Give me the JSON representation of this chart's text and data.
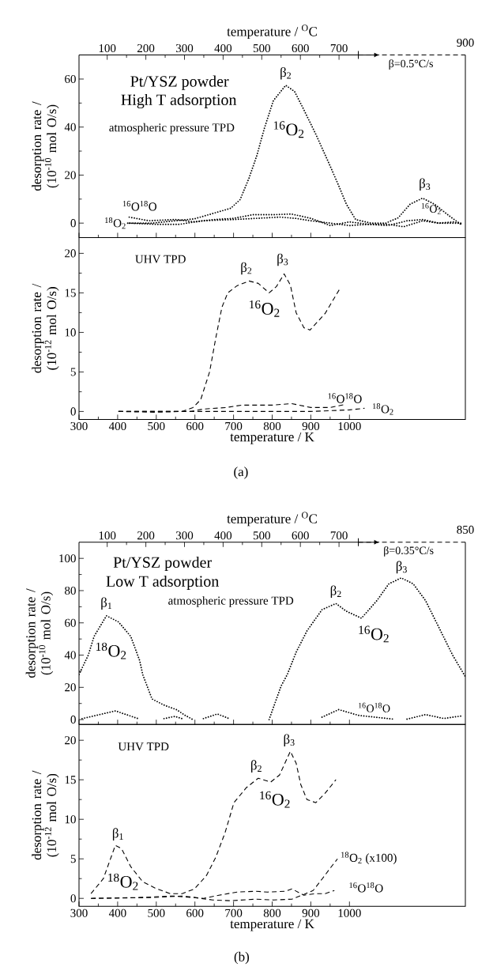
{
  "chart_data": [
    {
      "type": "line",
      "line_style": "dotted",
      "xlim": [
        300,
        1300
      ],
      "ylim": [
        -6,
        70
      ],
      "tick_labels": "y",
      "xticks": [
        {
          "value": 300,
          "label": null
        },
        {
          "value": 400,
          "label": null
        },
        {
          "value": 500,
          "label": null
        },
        {
          "value": 600,
          "label": null
        },
        {
          "value": 700,
          "label": null
        },
        {
          "value": 800,
          "label": null
        },
        {
          "value": 900,
          "label": null
        },
        {
          "value": 1000,
          "label": null
        }
      ],
      "yticks": [
        0,
        20,
        40,
        60
      ],
      "x2lim": [
        27,
        1027
      ],
      "x2ticks": [
        100,
        200,
        300,
        400,
        500,
        600,
        700
      ],
      "x2label": "temperature / $^{O}$C",
      "ylabel": "desorption rate / (10$^{-10}$ mol O/s)",
      "annotations": [
        "Pt/YSZ powder",
        "High T adsorption",
        "atmospheric pressure TPD",
        "β=0.5°C/s",
        "β$_{2}$",
        "$^{16}$O$_{2}$",
        "β$_{3}$",
        "$^{16}$O$_{2}$",
        "$^{16}$O$^{18}$O",
        "$^{18}$O$_{2}$",
        "900"
      ],
      "series": [
        {
          "color": "#000000",
          "x": [
            426,
            489,
            599,
            646,
            693,
            717,
            740,
            760,
            780,
            803,
            835,
            858,
            882,
            913,
            945,
            969,
            992,
            1016,
            1055,
            1094,
            1126,
            1157,
            1189,
            1220,
            1260,
            1291
          ],
          "values": [
            0,
            0,
            1.8,
            4,
            6.2,
            9.8,
            18.7,
            28,
            39.6,
            51,
            57.4,
            54.8,
            47.2,
            37,
            25.6,
            16.8,
            7.9,
            1.5,
            0,
            0,
            2.2,
            7.9,
            10.4,
            7.9,
            2.8,
            -0.8
          ]
        },
        {
          "color": "#000000",
          "x": [
            430,
            480,
            550,
            600,
            650,
            700,
            750,
            800,
            850,
            900,
            950,
            1000,
            1050,
            1100,
            1150,
            1190,
            1230,
            1270,
            1295
          ],
          "values": [
            2.5,
            1,
            1.5,
            0.5,
            1.5,
            2,
            3.5,
            3.5,
            3.8,
            2,
            -1,
            0.5,
            -0.5,
            -1,
            1,
            1.5,
            0,
            0.5,
            -0.5
          ]
        },
        {
          "color": "#000000",
          "x": [
            430,
            500,
            560,
            620,
            700,
            760,
            820,
            860,
            900,
            950,
            1000,
            1050,
            1100,
            1140,
            1190,
            1230,
            1290
          ],
          "values": [
            0,
            -0.5,
            -0.5,
            1,
            1.5,
            2,
            2.5,
            2,
            1,
            0,
            -1,
            -0.5,
            -0.5,
            -1.5,
            1,
            0,
            0
          ]
        }
      ]
    },
    {
      "type": "line",
      "line_style": "dashed",
      "xlim": [
        300,
        1300
      ],
      "ylim": [
        -1,
        22
      ],
      "xticks": [
        300,
        400,
        500,
        600,
        700,
        800,
        900,
        1000
      ],
      "yticks": [
        0,
        5,
        10,
        15,
        20
      ],
      "xlabel": "temperature / K",
      "ylabel": "desorption rate / (10$^{-12}$ mol O/s)",
      "annotations": [
        "UHV TPD",
        "(a)",
        "β$_{2}$",
        "β$_{3}$",
        "$^{16}$O$_{2}$",
        "$^{16}$O$^{18}$O",
        "$^{18}$O$_{2}$"
      ],
      "series": [
        {
          "color": "#000000",
          "x": [
            402,
            497,
            567,
            595,
            615,
            638,
            654,
            670,
            685,
            709,
            740,
            764,
            792,
            811,
            831,
            847,
            862,
            882,
            898,
            937,
            976
          ],
          "values": [
            0,
            -0.1,
            0,
            0.5,
            1.5,
            5,
            9.3,
            13.2,
            15,
            15.9,
            16.5,
            16.2,
            15,
            15.8,
            17.4,
            16,
            12.5,
            10.6,
            10.3,
            12.4,
            15.6
          ]
        },
        {
          "color": "#000000",
          "x": [
            402,
            500,
            590,
            620,
            680,
            720,
            800,
            850,
            870,
            900,
            950,
            990
          ],
          "values": [
            0,
            0,
            0,
            0.3,
            0.5,
            0.8,
            0.8,
            1,
            0.8,
            0.5,
            0.5,
            0.9
          ]
        },
        {
          "color": "#000000",
          "x": [
            402,
            600,
            700,
            850,
            900,
            950,
            1000,
            1039
          ],
          "values": [
            0,
            0,
            0,
            0,
            0,
            0.1,
            0.2,
            0.4
          ]
        }
      ]
    },
    {
      "type": "line",
      "line_style": "dotted",
      "xlim": [
        300,
        1300
      ],
      "ylim": [
        -3,
        110
      ],
      "tick_labels": "y",
      "xticks": [
        {
          "value": 300,
          "label": null
        },
        {
          "value": 400,
          "label": null
        },
        {
          "value": 500,
          "label": null
        },
        {
          "value": 600,
          "label": null
        },
        {
          "value": 700,
          "label": null
        },
        {
          "value": 800,
          "label": null
        },
        {
          "value": 900,
          "label": null
        },
        {
          "value": 1000,
          "label": null
        }
      ],
      "yticks": [
        0,
        20,
        40,
        60,
        80,
        100
      ],
      "x2lim": [
        27,
        1027
      ],
      "x2ticks": [
        100,
        200,
        300,
        400,
        500,
        600,
        700
      ],
      "x2label": "temperature / $^{O}$C",
      "ylabel": "desorption rate / (10$^{-10}$ mol O/s)",
      "annotations": [
        "Pt/YSZ powder",
        "Low T adsorption",
        "atmospheric pressure TPD",
        "β=0.35°C/s",
        "β$_{1}$",
        "$^{18}$O$_{2}$",
        "β$_{2}$",
        "β$_{3}$",
        "$^{16}$O$_{2}$",
        "$^{16}$O$^{18}$O",
        "850"
      ],
      "series": [
        {
          "color": "#000000",
          "x": [
            300,
            324,
            339,
            371,
            402,
            434,
            457,
            465,
            489,
            520,
            552,
            575,
            595
          ],
          "values": [
            28,
            40,
            51.6,
            64.4,
            60.6,
            51.6,
            36.6,
            27.9,
            12.8,
            9,
            6.2,
            2.6,
            0
          ]
        },
        {
          "color": "#000000",
          "x": [
            308,
            394,
            453,
            487,
            520,
            548,
            567,
            595,
            622,
            658,
            689,
            800,
            929,
            972,
            1024,
            1114,
            1130,
            1149,
            1197,
            1244,
            1291
          ],
          "values": [
            0.6,
            5.4,
            0.6,
            null,
            0.6,
            2,
            0.6,
            null,
            0.6,
            3.5,
            0.6,
            null,
            1.5,
            6.2,
            2.6,
            0.3,
            null,
            0.3,
            3.1,
            0.7,
            2.3
          ]
        },
        {
          "color": "#000000",
          "x": [
            792,
            803,
            823,
            839,
            862,
            890,
            929,
            965,
            992,
            1031,
            1071,
            1102,
            1134,
            1165,
            1197,
            1236,
            1267,
            1299
          ],
          "values": [
            0,
            7.4,
            20.8,
            27.9,
            41.8,
            55,
            68.2,
            72,
            67.2,
            62.9,
            73.8,
            84.2,
            87.9,
            84.2,
            73.8,
            55,
            40,
            27
          ]
        }
      ]
    },
    {
      "type": "line",
      "line_style": "dashed",
      "xlim": [
        300,
        1300
      ],
      "ylim": [
        -1,
        22
      ],
      "xticks": [
        300,
        400,
        500,
        600,
        700,
        800,
        900,
        1000
      ],
      "yticks": [
        0,
        5,
        10,
        15,
        20
      ],
      "xlabel": "temperature / K",
      "ylabel": "desorption rate / (10$^{-12}$ mol O/s)",
      "annotations": [
        "UHV TPD",
        "(b)",
        "β$_{1}$",
        "$^{18}$O$_{2}$",
        "β$_{2}$",
        "β$_{3}$",
        "$^{16}$O$_{2}$",
        "$^{18}$O$_{2}$ (x100)",
        "$^{16}$O$^{18}$O"
      ],
      "series": [
        {
          "color": "#000000",
          "x": [
            331,
            363,
            394,
            410,
            434,
            465,
            497,
            536,
            567,
            599,
            630,
            654,
            678,
            701,
            733,
            764,
            796,
            819,
            847,
            862,
            874,
            890,
            913,
            937,
            965
          ],
          "values": [
            0.6,
            2.5,
            6.7,
            6.3,
            4,
            2.1,
            1.3,
            0.6,
            0.6,
            1.2,
            2.9,
            5.2,
            8.3,
            12.1,
            14,
            15.2,
            14.7,
            15.6,
            18.6,
            17.1,
            14.4,
            12.5,
            12.1,
            13.3,
            15
          ]
        },
        {
          "color": "#000000",
          "x": [
            331,
            449,
            544,
            599,
            646,
            693,
            756,
            803,
            851,
            882,
            906,
            930,
            953,
            969
          ],
          "values": [
            0,
            0.1,
            0.3,
            0.1,
            -0.2,
            -0.3,
            -0.1,
            -0.2,
            -0.1,
            0.5,
            1,
            2.5,
            4,
            5
          ]
        },
        {
          "color": "#000000",
          "x": [
            331,
            489,
            567,
            622,
            662,
            709,
            756,
            788,
            835,
            851,
            882,
            913,
            937,
            961
          ],
          "values": [
            0,
            0.1,
            0.3,
            0,
            0.4,
            0.8,
            0.9,
            0.8,
            0.9,
            1.2,
            0.4,
            0.6,
            0.6,
            1
          ]
        }
      ]
    }
  ]
}
